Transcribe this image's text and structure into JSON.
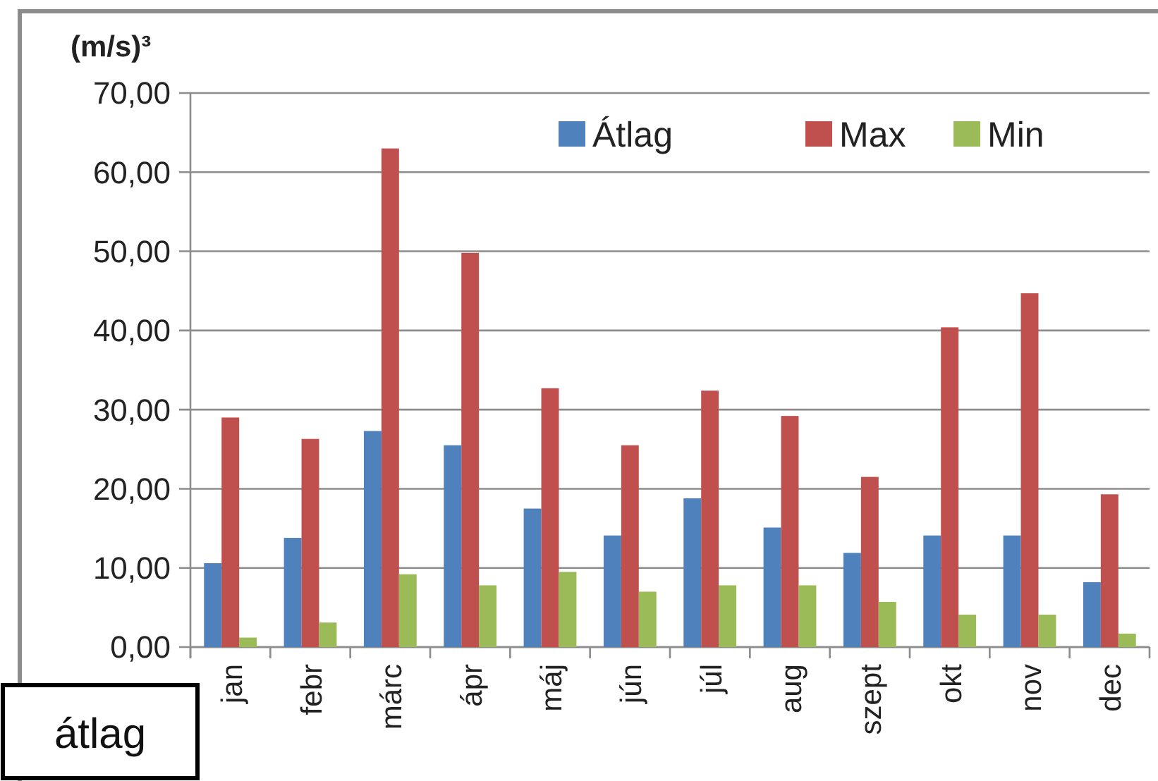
{
  "chart_data": {
    "type": "bar",
    "ylabel": "(m/s)³",
    "categories": [
      "jan",
      "febr",
      "márc",
      "ápr",
      "máj",
      "jún",
      "júl",
      "aug",
      "szept",
      "okt",
      "nov",
      "dec"
    ],
    "series": [
      {
        "name": "Átlag",
        "color": "#4f81bd",
        "values": [
          10.6,
          13.8,
          27.3,
          25.5,
          17.5,
          14.1,
          18.8,
          15.1,
          11.9,
          14.1,
          14.1,
          8.2
        ]
      },
      {
        "name": "Max",
        "color": "#c0504d",
        "values": [
          29,
          26.3,
          63,
          49.8,
          32.7,
          25.5,
          32.4,
          29.2,
          21.5,
          40.4,
          44.7,
          19.3
        ]
      },
      {
        "name": "Min",
        "color": "#9bbb59",
        "values": [
          1.2,
          3.1,
          9.2,
          7.8,
          9.5,
          7,
          7.8,
          7.8,
          5.7,
          4.1,
          4.1,
          1.7
        ]
      }
    ],
    "ylim": [
      0,
      70
    ],
    "yticks": [
      {
        "value": 0,
        "label": "0,00"
      },
      {
        "value": 10,
        "label": "10,00"
      },
      {
        "value": 20,
        "label": "20,00"
      },
      {
        "value": 30,
        "label": "30,00"
      },
      {
        "value": 40,
        "label": "40,00"
      },
      {
        "value": 50,
        "label": "50,00"
      },
      {
        "value": 60,
        "label": "60,00"
      },
      {
        "value": 70,
        "label": "70,00"
      }
    ],
    "grid": "y",
    "legend": "top right",
    "annotations": [
      "átlag"
    ]
  }
}
